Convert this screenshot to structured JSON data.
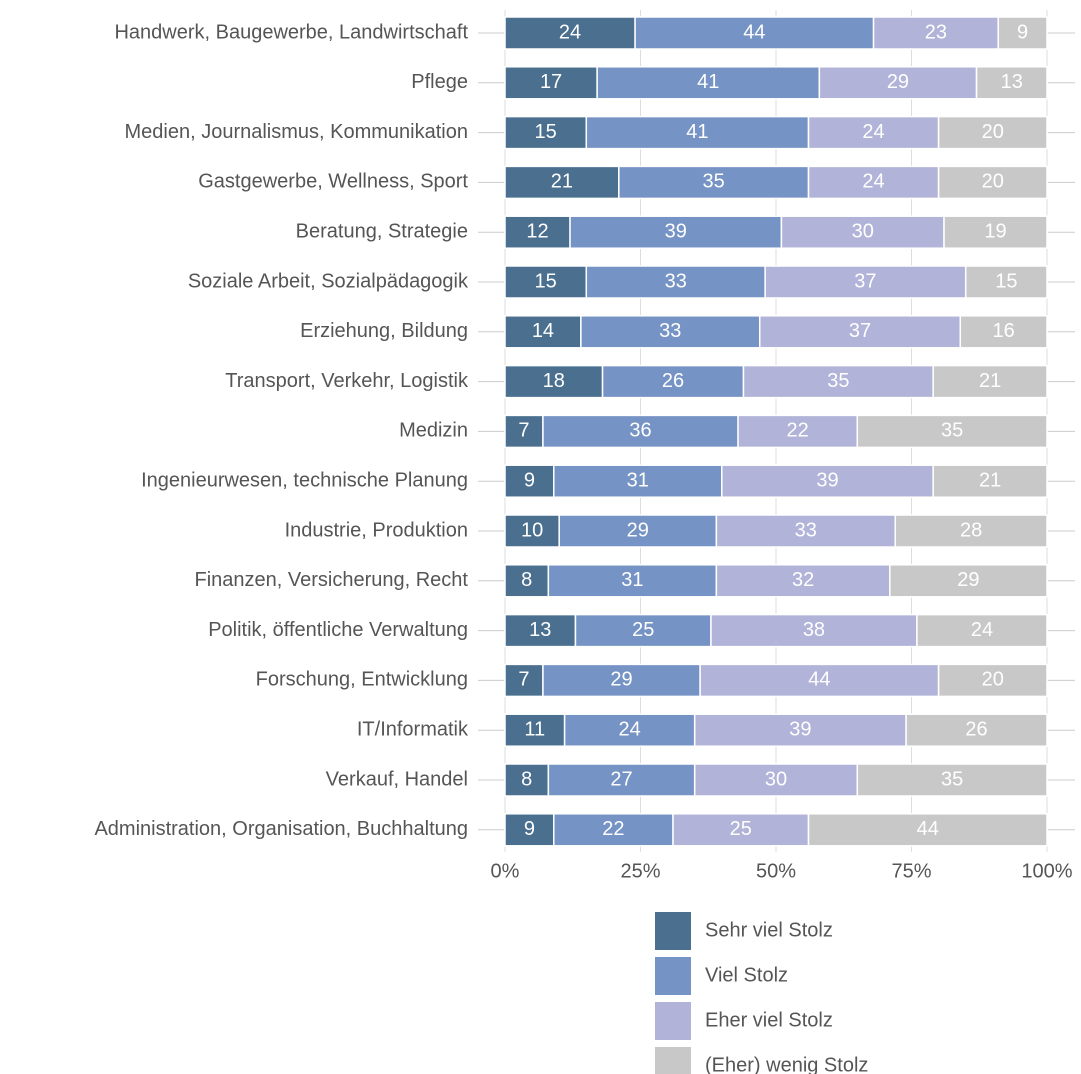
{
  "chart_data": {
    "type": "stacked_barh",
    "categories": [
      "Handwerk, Baugewerbe, Landwirtschaft",
      "Pflege",
      "Medien, Journalismus, Kommunikation",
      "Gastgewerbe, Wellness, Sport",
      "Beratung, Strategie",
      "Soziale Arbeit, Sozialpädagogik",
      "Erziehung, Bildung",
      "Transport, Verkehr, Logistik",
      "Medizin",
      "Ingenieurwesen, technische Planung",
      "Industrie, Produktion",
      "Finanzen, Versicherung, Recht",
      "Politik, öffentliche Verwaltung",
      "Forschung, Entwicklung",
      "IT/Informatik",
      "Verkauf, Handel",
      "Administration, Organisation, Buchhaltung"
    ],
    "series": [
      {
        "name": "Sehr viel Stolz",
        "color": "#4a6f8f",
        "values": [
          24,
          17,
          15,
          21,
          12,
          15,
          14,
          18,
          7,
          9,
          10,
          8,
          13,
          7,
          11,
          8,
          9
        ]
      },
      {
        "name": "Viel Stolz",
        "color": "#7593c4",
        "values": [
          44,
          41,
          41,
          35,
          39,
          33,
          33,
          26,
          36,
          31,
          29,
          31,
          25,
          29,
          24,
          27,
          22
        ]
      },
      {
        "name": "Eher viel Stolz",
        "color": "#b1b3d8",
        "values": [
          23,
          29,
          24,
          24,
          30,
          37,
          37,
          35,
          22,
          39,
          33,
          32,
          38,
          44,
          39,
          30,
          25
        ]
      },
      {
        "name": "(Eher) wenig Stolz",
        "color": "#c8c8c8",
        "values": [
          9,
          13,
          20,
          20,
          19,
          15,
          16,
          21,
          35,
          21,
          28,
          29,
          24,
          20,
          26,
          35,
          44
        ]
      }
    ],
    "xlim": [
      0,
      100
    ],
    "xticks": [
      {
        "value": 0,
        "label": "0%"
      },
      {
        "value": 25,
        "label": "25%"
      },
      {
        "value": 50,
        "label": "50%"
      },
      {
        "value": 75,
        "label": "75%"
      },
      {
        "value": 100,
        "label": "100%"
      }
    ],
    "grid": true,
    "legend": "bottom"
  }
}
